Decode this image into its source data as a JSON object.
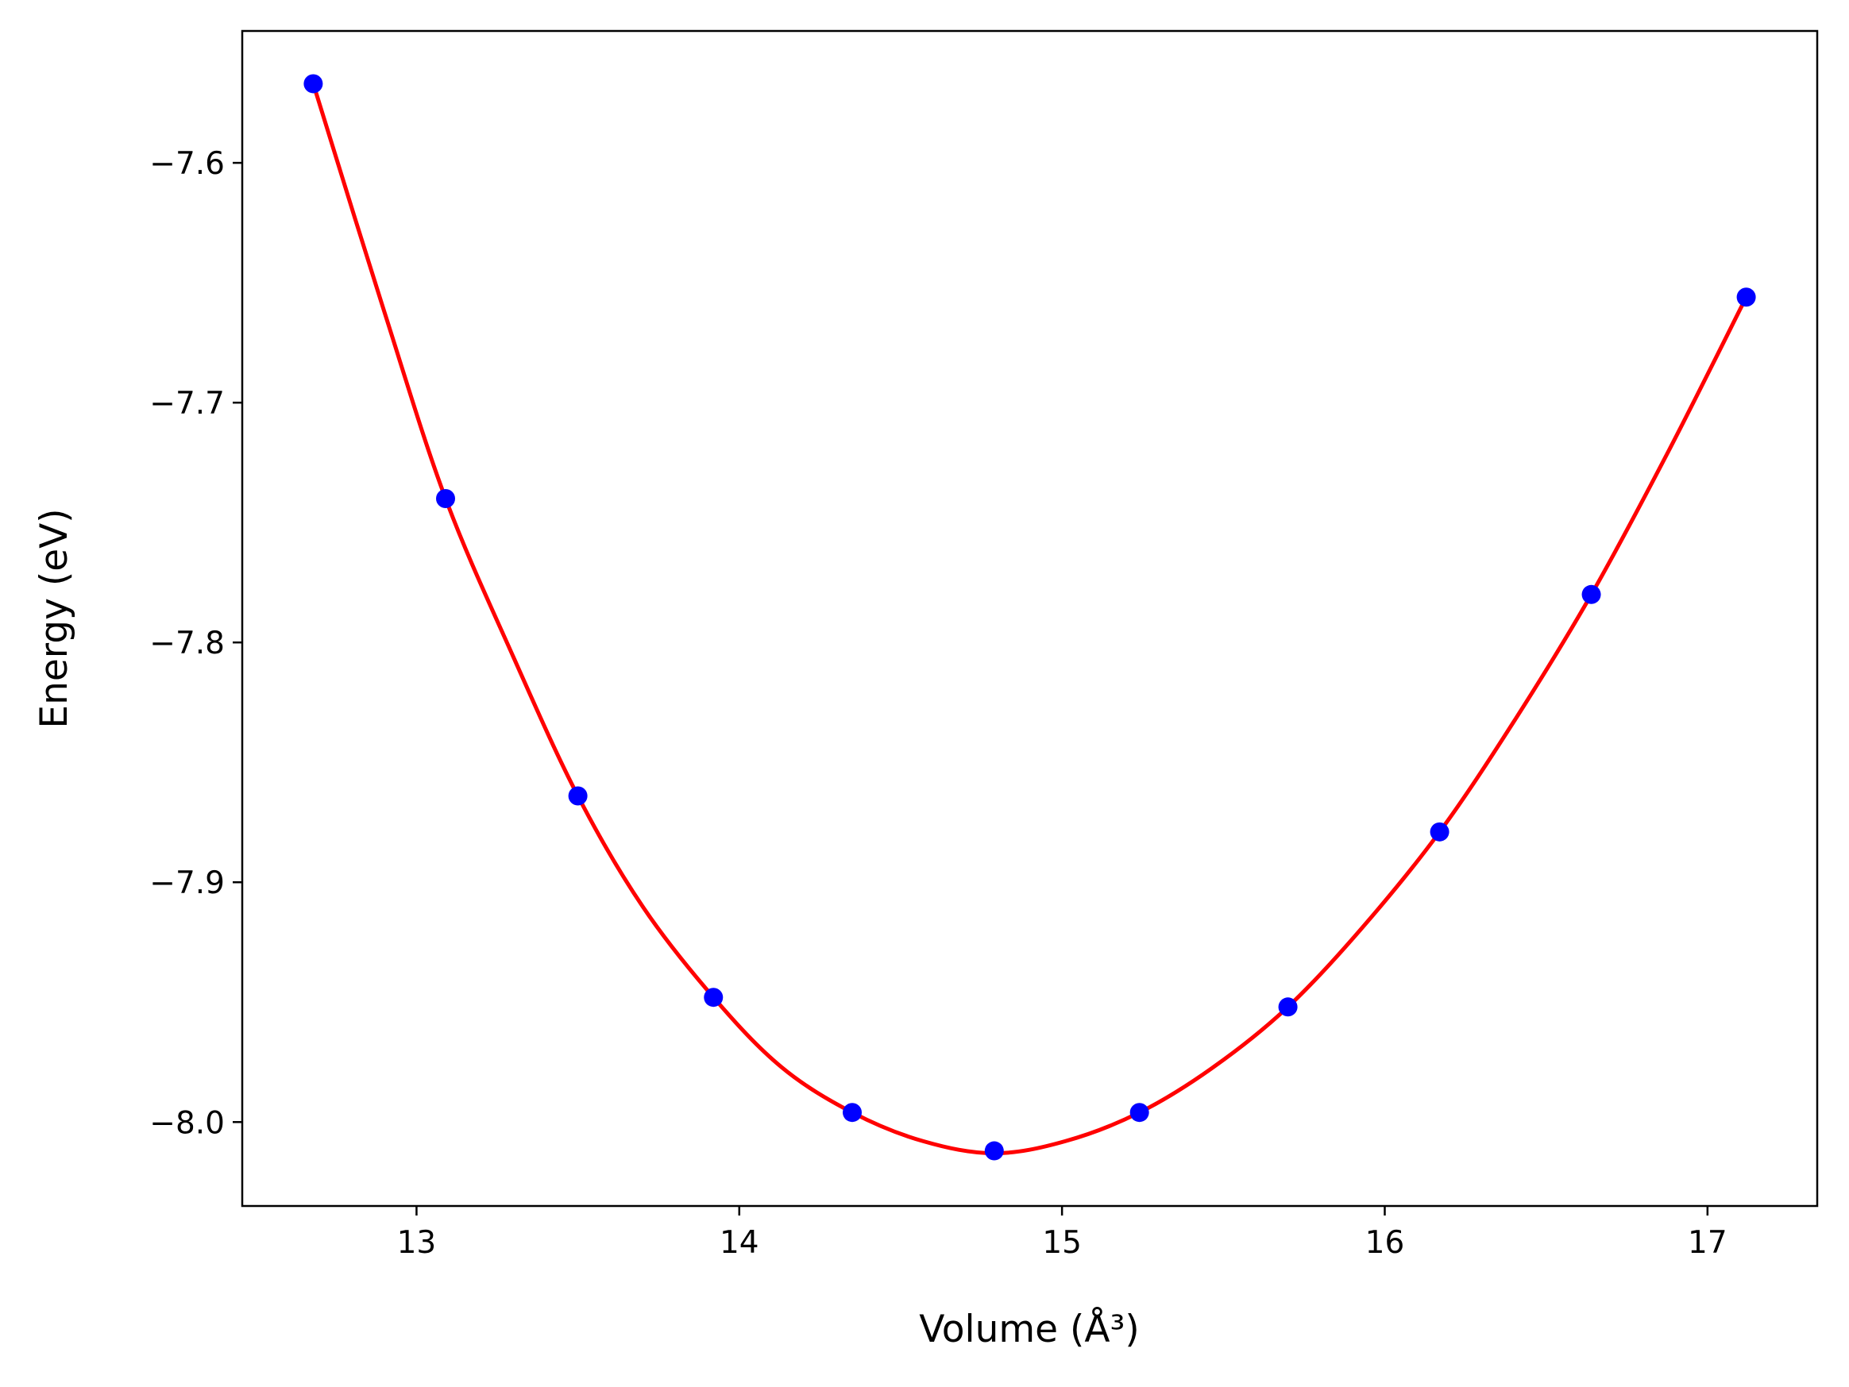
{
  "chart_data": {
    "type": "scatter",
    "title": "",
    "xlabel": "Volume (Å³)",
    "ylabel": "Energy (eV)",
    "xlim": [
      12.46,
      17.34
    ],
    "ylim": [
      -8.035,
      -7.545
    ],
    "xticks": [
      13,
      14,
      15,
      16,
      17
    ],
    "xtick_labels": [
      "13",
      "14",
      "15",
      "16",
      "17"
    ],
    "yticks": [
      -8.0,
      -7.9,
      -7.8,
      -7.7,
      -7.6
    ],
    "ytick_labels": [
      "−8.0",
      "−7.9",
      "−7.8",
      "−7.7",
      "−7.6"
    ],
    "grid": false,
    "legend": "none",
    "series": [
      {
        "kind": "points",
        "color": "#0000ff",
        "x": [
          12.68,
          13.09,
          13.5,
          13.92,
          14.35,
          14.79,
          15.24,
          15.7,
          16.17,
          16.64,
          17.12
        ],
        "y": [
          -7.567,
          -7.74,
          -7.864,
          -7.948,
          -7.996,
          -8.012,
          -7.996,
          -7.952,
          -7.879,
          -7.78,
          -7.656
        ]
      },
      {
        "kind": "fit-curve",
        "color": "#ff0000",
        "x": [
          12.68,
          12.9,
          13.09,
          13.3,
          13.5,
          13.7,
          13.92,
          14.13,
          14.35,
          14.57,
          14.79,
          15.01,
          15.24,
          15.47,
          15.7,
          15.93,
          16.17,
          16.4,
          16.64,
          16.88,
          17.12
        ],
        "y": [
          -7.567,
          -7.662,
          -7.74,
          -7.806,
          -7.864,
          -7.91,
          -7.948,
          -7.977,
          -7.996,
          -8.008,
          -8.013,
          -8.008,
          -7.996,
          -7.977,
          -7.952,
          -7.919,
          -7.879,
          -7.833,
          -7.78,
          -7.72,
          -7.656
        ]
      }
    ]
  }
}
